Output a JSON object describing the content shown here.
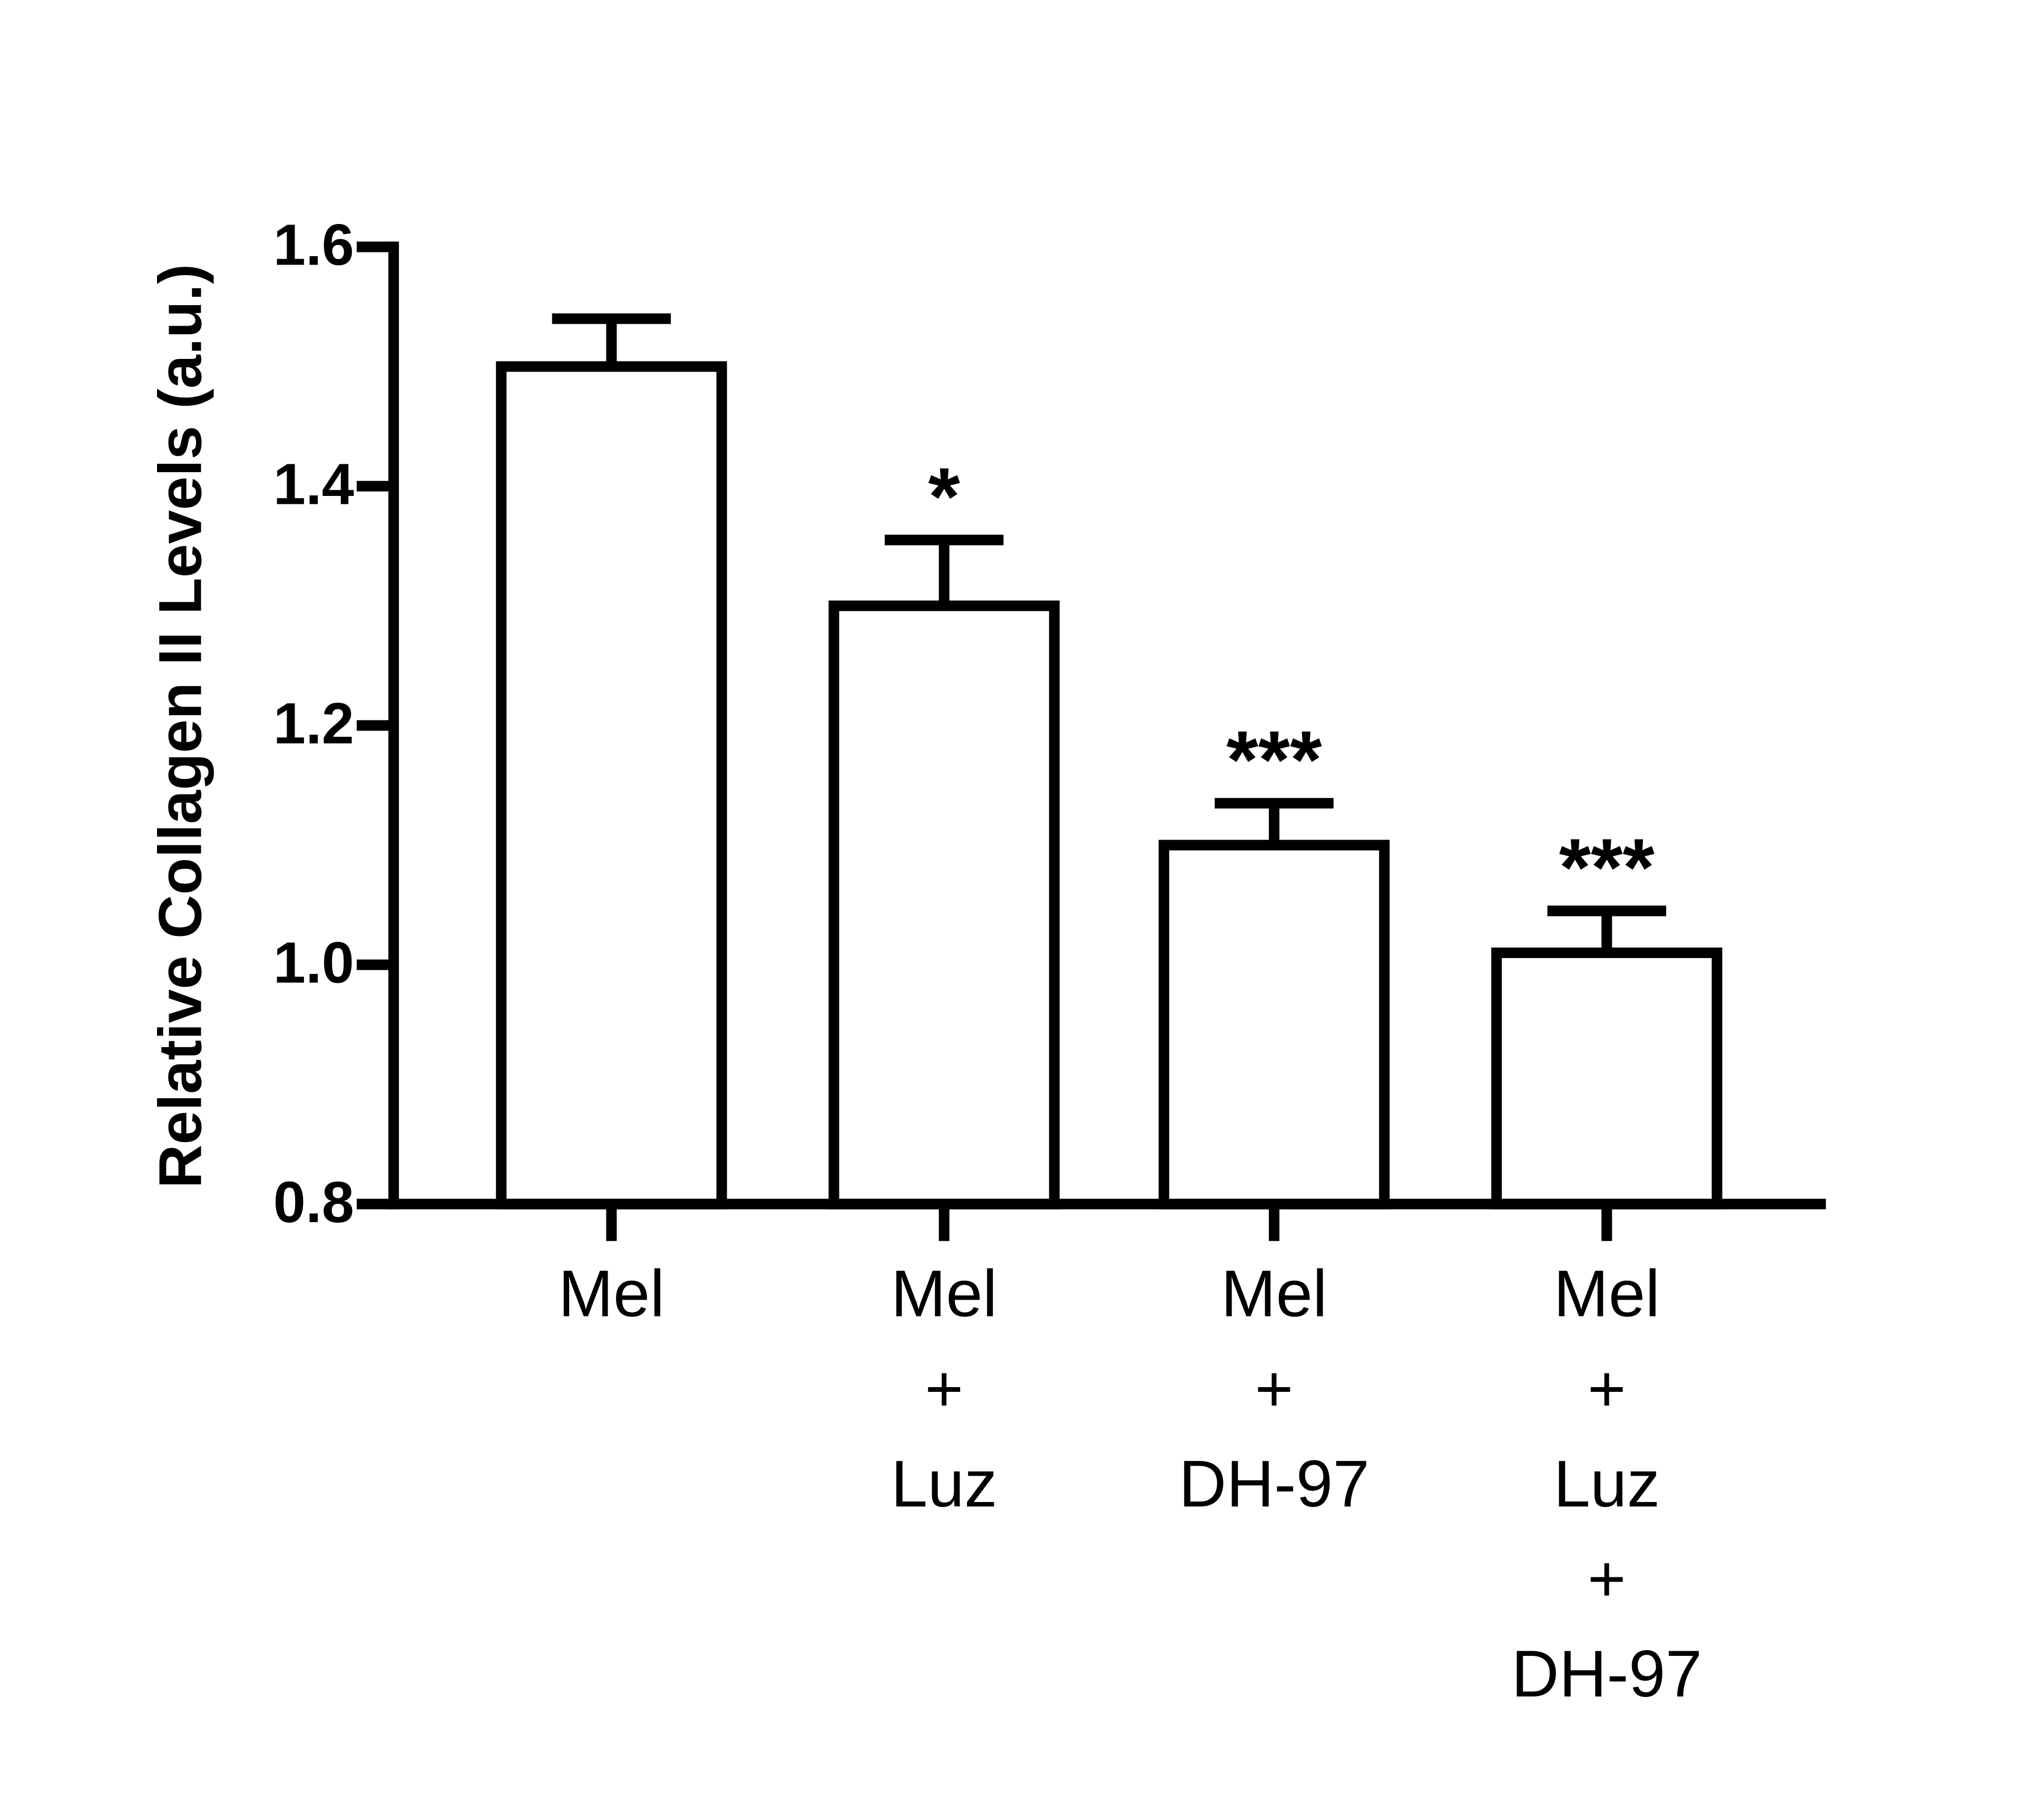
{
  "chart_data": {
    "type": "bar",
    "y_label": "Relative Collagen II Levels (a.u.)",
    "categories": [
      "Mel",
      "Mel\n+\nLuz",
      "Mel\n+\nDH-97",
      "Mel\n+\nLuz\n+\nDH-97"
    ],
    "values": [
      1.5,
      1.3,
      1.1,
      1.01
    ],
    "errors": [
      0.04,
      0.055,
      0.035,
      0.035
    ],
    "significance": [
      null,
      "*",
      "***",
      "***"
    ],
    "color": "#ffffff",
    "edge_color": "#000000",
    "ylim": [
      0.8,
      1.6
    ],
    "yticks": [
      0.8,
      {
        "value": 1.0,
        "label": "1.0"
      },
      1.2,
      1.4,
      1.6
    ],
    "grid": false
  }
}
